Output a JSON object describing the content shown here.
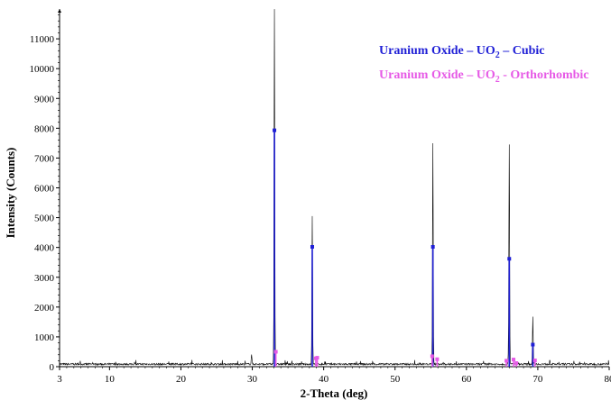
{
  "chart_data": {
    "type": "line",
    "xlabel": "2-Theta (deg)",
    "ylabel": "Intensity (Counts)",
    "xlim": [
      3,
      80
    ],
    "ylim": [
      0,
      12000
    ],
    "xticks": [
      3,
      10,
      20,
      30,
      40,
      50,
      60,
      70,
      80
    ],
    "yticks": [
      0,
      1000,
      2000,
      3000,
      4000,
      5000,
      6000,
      7000,
      8000,
      9000,
      10000,
      11000
    ],
    "colors": {
      "measured": "#000000",
      "cubic": "#1f1fd6",
      "orthorhombic": "#e65ae6"
    },
    "measured_peaks": [
      {
        "x": 29.9,
        "y": 400
      },
      {
        "x": 33.1,
        "y": 11950
      },
      {
        "x": 38.4,
        "y": 5000
      },
      {
        "x": 55.3,
        "y": 7450
      },
      {
        "x": 65.9,
        "y": 500
      },
      {
        "x": 66.0,
        "y": 7400
      },
      {
        "x": 69.3,
        "y": 1650
      }
    ],
    "series": [
      {
        "name": "Uranium Oxide – UO",
        "name_sub": "2",
        "name_tail": " – Cubic",
        "x": [
          33.1,
          38.4,
          55.3,
          66.0,
          69.3
        ],
        "y": [
          7930,
          4020,
          4020,
          3620,
          740
        ]
      },
      {
        "name": "Uranium Oxide – UO",
        "name_sub": "2",
        "name_tail": " - Orthorhombic",
        "x": [
          33.3,
          38.9,
          39.1,
          55.2,
          55.9,
          65.6,
          66.6,
          67.0,
          69.6
        ],
        "y": [
          500,
          280,
          300,
          350,
          250,
          200,
          240,
          120,
          210
        ]
      }
    ]
  }
}
